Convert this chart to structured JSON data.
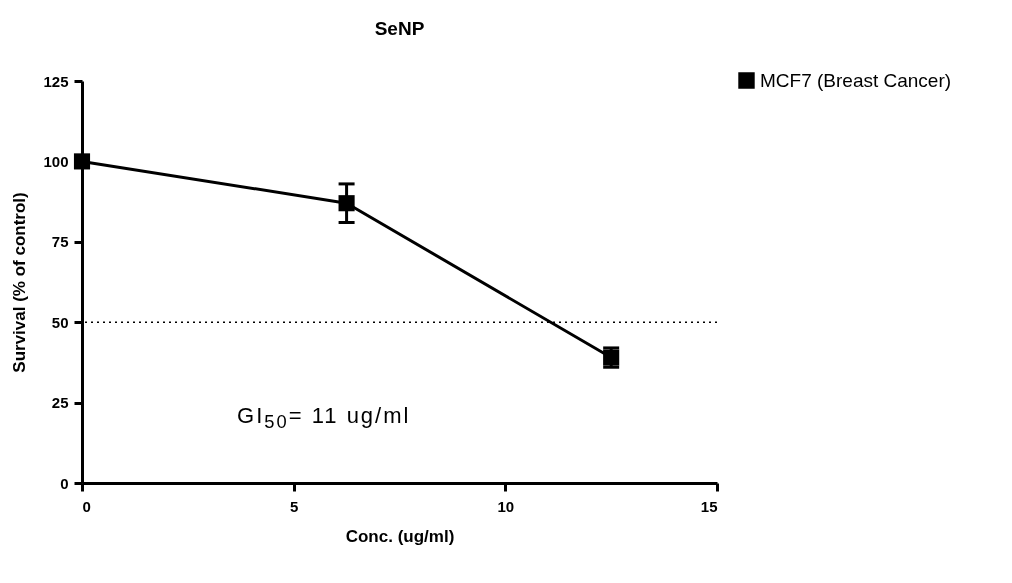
{
  "chart_data": {
    "type": "line",
    "title": "SeNP",
    "xlabel": "Conc. (ug/ml)",
    "ylabel": "Survival (% of control)",
    "x": [
      0,
      6.25,
      12.5
    ],
    "series": [
      {
        "name": "MCF7 (Breast Cancer)",
        "color": "#000000",
        "values": [
          100,
          87,
          39
        ],
        "errors": [
          null,
          6,
          3
        ]
      }
    ],
    "xlim": [
      0,
      15
    ],
    "xticks": [
      0,
      5,
      10,
      15
    ],
    "ylim": [
      0,
      125
    ],
    "yticks": [
      0,
      25,
      50,
      75,
      100,
      125
    ],
    "ref_lines": [
      {
        "axis": "y",
        "value": 50,
        "line_style": "dotted"
      }
    ],
    "annotations": [
      "GI$_{50}$= 11 ug/ml"
    ],
    "marker": "square",
    "line_style": "solid",
    "grid": false,
    "legend": "top right"
  }
}
